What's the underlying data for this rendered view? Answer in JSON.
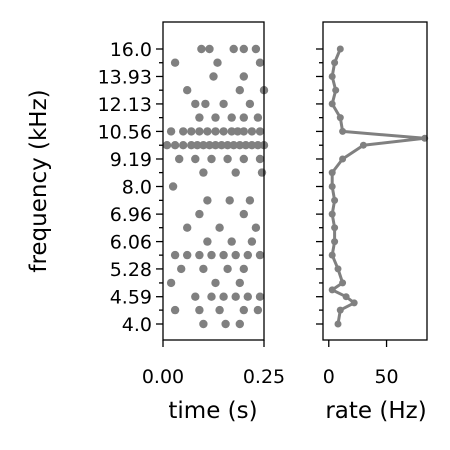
{
  "chart_data": [
    {
      "type": "scatter",
      "xlabel": "time (s)",
      "ylabel": "frequency (kHz)",
      "xlim": [
        0,
        0.25
      ],
      "xticks": [
        0.0,
        0.25
      ],
      "xtick_labels": [
        "0.00",
        "0.25"
      ],
      "ytick_labels": [
        "4.0",
        "4.59",
        "5.28",
        "6.06",
        "6.96",
        "8.0",
        "9.19",
        "10.56",
        "12.13",
        "13.93",
        "16.0"
      ],
      "freq_levels": [
        "4.0",
        "4.29",
        "4.59",
        "4.92",
        "5.28",
        "5.66",
        "6.06",
        "6.5",
        "6.96",
        "7.46",
        "8.0",
        "8.58",
        "9.19",
        "9.85",
        "10.56",
        "11.32",
        "12.13",
        "13.0",
        "13.93",
        "14.93",
        "16.0"
      ],
      "color": "#808080",
      "points": [
        {
          "t": 0.095,
          "f": "16.0"
        },
        {
          "t": 0.115,
          "f": "16.0"
        },
        {
          "t": 0.175,
          "f": "16.0"
        },
        {
          "t": 0.2,
          "f": "16.0"
        },
        {
          "t": 0.23,
          "f": "16.0"
        },
        {
          "t": 0.03,
          "f": "14.93"
        },
        {
          "t": 0.135,
          "f": "14.93"
        },
        {
          "t": 0.24,
          "f": "14.93"
        },
        {
          "t": 0.125,
          "f": "13.93"
        },
        {
          "t": 0.2,
          "f": "13.93"
        },
        {
          "t": 0.06,
          "f": "13.0"
        },
        {
          "t": 0.19,
          "f": "13.0"
        },
        {
          "t": 0.25,
          "f": "13.0"
        },
        {
          "t": 0.08,
          "f": "12.13"
        },
        {
          "t": 0.105,
          "f": "12.13"
        },
        {
          "t": 0.15,
          "f": "12.13"
        },
        {
          "t": 0.215,
          "f": "12.13"
        },
        {
          "t": 0.09,
          "f": "11.32"
        },
        {
          "t": 0.13,
          "f": "11.32"
        },
        {
          "t": 0.17,
          "f": "11.32"
        },
        {
          "t": 0.2,
          "f": "11.32"
        },
        {
          "t": 0.235,
          "f": "11.32"
        },
        {
          "t": 0.02,
          "f": "10.56"
        },
        {
          "t": 0.05,
          "f": "10.56"
        },
        {
          "t": 0.07,
          "f": "10.56"
        },
        {
          "t": 0.09,
          "f": "10.56"
        },
        {
          "t": 0.11,
          "f": "10.56"
        },
        {
          "t": 0.13,
          "f": "10.56"
        },
        {
          "t": 0.15,
          "f": "10.56"
        },
        {
          "t": 0.17,
          "f": "10.56"
        },
        {
          "t": 0.185,
          "f": "10.56"
        },
        {
          "t": 0.2,
          "f": "10.56"
        },
        {
          "t": 0.22,
          "f": "10.56"
        },
        {
          "t": 0.24,
          "f": "10.56"
        },
        {
          "t": 0.01,
          "f": "9.85"
        },
        {
          "t": 0.03,
          "f": "9.85"
        },
        {
          "t": 0.05,
          "f": "9.85"
        },
        {
          "t": 0.07,
          "f": "9.85"
        },
        {
          "t": 0.085,
          "f": "9.85"
        },
        {
          "t": 0.1,
          "f": "9.85"
        },
        {
          "t": 0.115,
          "f": "9.85"
        },
        {
          "t": 0.13,
          "f": "9.85"
        },
        {
          "t": 0.145,
          "f": "9.85"
        },
        {
          "t": 0.16,
          "f": "9.85"
        },
        {
          "t": 0.175,
          "f": "9.85"
        },
        {
          "t": 0.19,
          "f": "9.85"
        },
        {
          "t": 0.205,
          "f": "9.85"
        },
        {
          "t": 0.22,
          "f": "9.85"
        },
        {
          "t": 0.235,
          "f": "9.85"
        },
        {
          "t": 0.25,
          "f": "9.85"
        },
        {
          "t": 0.04,
          "f": "9.19"
        },
        {
          "t": 0.08,
          "f": "9.19"
        },
        {
          "t": 0.12,
          "f": "9.19"
        },
        {
          "t": 0.16,
          "f": "9.19"
        },
        {
          "t": 0.2,
          "f": "9.19"
        },
        {
          "t": 0.24,
          "f": "9.19"
        },
        {
          "t": 0.1,
          "f": "8.58"
        },
        {
          "t": 0.18,
          "f": "8.58"
        },
        {
          "t": 0.245,
          "f": "8.58"
        },
        {
          "t": 0.025,
          "f": "8.0"
        },
        {
          "t": 0.11,
          "f": "7.46"
        },
        {
          "t": 0.165,
          "f": "7.46"
        },
        {
          "t": 0.215,
          "f": "7.46"
        },
        {
          "t": 0.09,
          "f": "6.96"
        },
        {
          "t": 0.2,
          "f": "6.96"
        },
        {
          "t": 0.06,
          "f": "6.5"
        },
        {
          "t": 0.14,
          "f": "6.5"
        },
        {
          "t": 0.23,
          "f": "6.5"
        },
        {
          "t": 0.11,
          "f": "6.06"
        },
        {
          "t": 0.17,
          "f": "6.06"
        },
        {
          "t": 0.22,
          "f": "6.06"
        },
        {
          "t": 0.03,
          "f": "5.66"
        },
        {
          "t": 0.06,
          "f": "5.66"
        },
        {
          "t": 0.09,
          "f": "5.66"
        },
        {
          "t": 0.12,
          "f": "5.66"
        },
        {
          "t": 0.15,
          "f": "5.66"
        },
        {
          "t": 0.18,
          "f": "5.66"
        },
        {
          "t": 0.21,
          "f": "5.66"
        },
        {
          "t": 0.24,
          "f": "5.66"
        },
        {
          "t": 0.045,
          "f": "5.28"
        },
        {
          "t": 0.1,
          "f": "5.28"
        },
        {
          "t": 0.16,
          "f": "5.28"
        },
        {
          "t": 0.2,
          "f": "5.28"
        },
        {
          "t": 0.02,
          "f": "4.92"
        },
        {
          "t": 0.13,
          "f": "4.92"
        },
        {
          "t": 0.19,
          "f": "4.92"
        },
        {
          "t": 0.08,
          "f": "4.59"
        },
        {
          "t": 0.12,
          "f": "4.59"
        },
        {
          "t": 0.15,
          "f": "4.59"
        },
        {
          "t": 0.18,
          "f": "4.59"
        },
        {
          "t": 0.21,
          "f": "4.59"
        },
        {
          "t": 0.24,
          "f": "4.59"
        },
        {
          "t": 0.03,
          "f": "4.29"
        },
        {
          "t": 0.09,
          "f": "4.29"
        },
        {
          "t": 0.14,
          "f": "4.29"
        },
        {
          "t": 0.2,
          "f": "4.29"
        },
        {
          "t": 0.235,
          "f": "4.29"
        },
        {
          "t": 0.1,
          "f": "4.0"
        },
        {
          "t": 0.155,
          "f": "4.0"
        },
        {
          "t": 0.19,
          "f": "4.0"
        }
      ]
    },
    {
      "type": "line",
      "xlabel": "rate (Hz)",
      "xlim": [
        -5,
        85
      ],
      "xticks": [
        0,
        50
      ],
      "xtick_labels": [
        "0",
        "50"
      ],
      "color": "#808080",
      "x": [
        10,
        5,
        3,
        6,
        3,
        10,
        12,
        83,
        30,
        12,
        3,
        3,
        5,
        3,
        5,
        5,
        3,
        8,
        12,
        3,
        15,
        22,
        10,
        8
      ],
      "y_levels": [
        "16.0",
        "14.93",
        "13.93",
        "13.0",
        "12.13",
        "11.32",
        "10.56",
        "10.2",
        "9.85",
        "9.19",
        "8.58",
        "8.0",
        "7.46",
        "6.96",
        "6.5",
        "6.06",
        "5.66",
        "5.28",
        "4.92",
        "4.75",
        "4.59",
        "4.45",
        "4.29",
        "4.0"
      ]
    }
  ]
}
